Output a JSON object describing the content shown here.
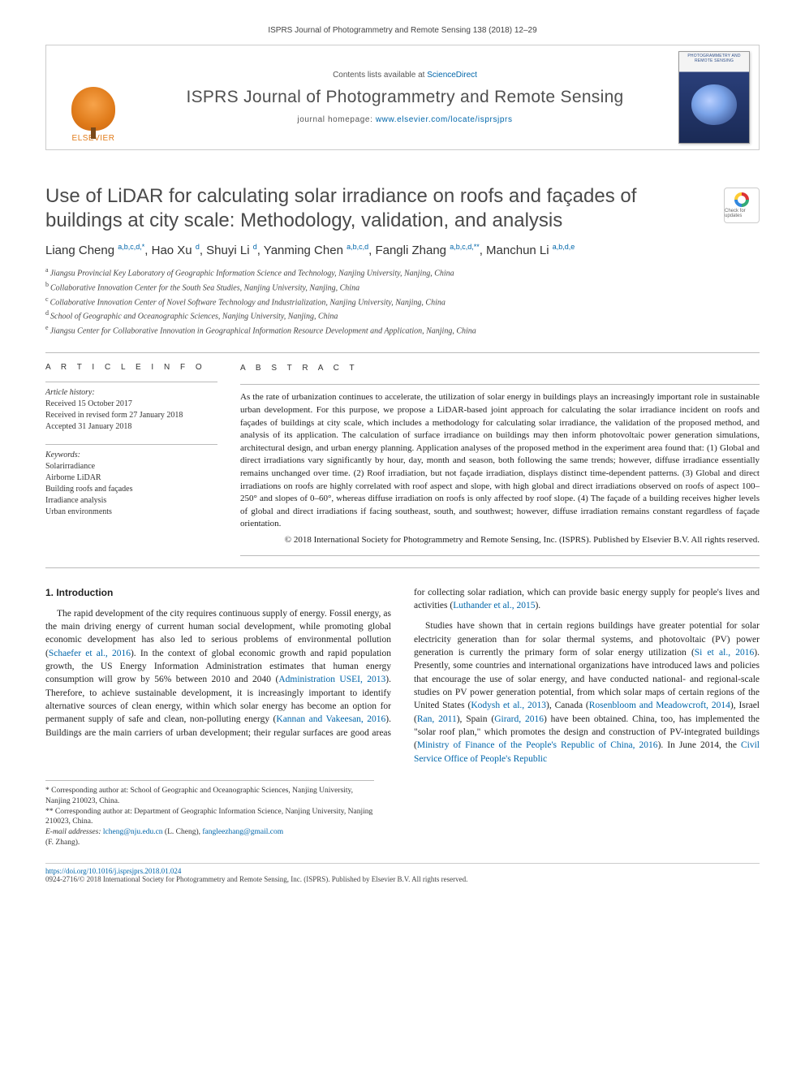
{
  "running_head": "ISPRS Journal of Photogrammetry and Remote Sensing 138 (2018) 12–29",
  "banner": {
    "publisher": "ELSEVIER",
    "contents_prefix": "Contents lists available at ",
    "contents_link": "ScienceDirect",
    "journal_name": "ISPRS Journal of Photogrammetry and Remote Sensing",
    "homepage_prefix": "journal homepage: ",
    "homepage_link": "www.elsevier.com/locate/isprsjprs",
    "cover_text": "PHOTOGRAMMETRY AND REMOTE SENSING"
  },
  "title": "Use of LiDAR for calculating solar irradiance on roofs and façades of buildings at city scale: Methodology, validation, and analysis",
  "check_badge": "Check for updates",
  "authors_html": "Liang Cheng <sup>a,b,c,d,*</sup>, Hao Xu <sup>d</sup>, Shuyi Li <sup>d</sup>, Yanming Chen <sup>a,b,c,d</sup>, Fangli Zhang <sup>a,b,c,d,**</sup>, Manchun Li <sup>a,b,d,e</sup>",
  "affiliations": [
    "a Jiangsu Provincial Key Laboratory of Geographic Information Science and Technology, Nanjing University, Nanjing, China",
    "b Collaborative Innovation Center for the South Sea Studies, Nanjing University, Nanjing, China",
    "c Collaborative Innovation Center of Novel Software Technology and Industrialization, Nanjing University, Nanjing, China",
    "d School of Geographic and Oceanographic Sciences, Nanjing University, Nanjing, China",
    "e Jiangsu Center for Collaborative Innovation in Geographical Information Resource Development and Application, Nanjing, China"
  ],
  "article_info": {
    "heading": "A R T I C L E   I N F O",
    "history_label": "Article history:",
    "history": [
      "Received 15 October 2017",
      "Received in revised form 27 January 2018",
      "Accepted 31 January 2018"
    ],
    "keywords_label": "Keywords:",
    "keywords": [
      "Solarirradiance",
      "Airborne LiDAR",
      "Building roofs and façades",
      "Irradiance analysis",
      "Urban environments"
    ]
  },
  "abstract": {
    "heading": "A B S T R A C T",
    "text": "As the rate of urbanization continues to accelerate, the utilization of solar energy in buildings plays an increasingly important role in sustainable urban development. For this purpose, we propose a LiDAR-based joint approach for calculating the solar irradiance incident on roofs and façades of buildings at city scale, which includes a methodology for calculating solar irradiance, the validation of the proposed method, and analysis of its application. The calculation of surface irradiance on buildings may then inform photovoltaic power generation simulations, architectural design, and urban energy planning. Application analyses of the proposed method in the experiment area found that: (1) Global and direct irradiations vary significantly by hour, day, month and season, both following the same trends; however, diffuse irradiance essentially remains unchanged over time. (2) Roof irradiation, but not façade irradiation, displays distinct time-dependent patterns. (3) Global and direct irradiations on roofs are highly correlated with roof aspect and slope, with high global and direct irradiations observed on roofs of aspect 100–250° and slopes of 0–60°, whereas diffuse irradiation on roofs is only affected by roof slope. (4) The façade of a building receives higher levels of global and direct irradiations if facing southeast, south, and southwest; however, diffuse irradiation remains constant regardless of façade orientation.",
    "copyright": "© 2018 International Society for Photogrammetry and Remote Sensing, Inc. (ISPRS). Published by Elsevier B.V. All rights reserved."
  },
  "section1": {
    "heading": "1. Introduction",
    "p1_pre": "The rapid development of the city requires continuous supply of energy. Fossil energy, as the main driving energy of current human social development, while promoting global economic development has also led to serious problems of environmental pollution (",
    "c1": "Schaefer et al., 2016",
    "p1_mid1": "). In the context of global economic growth and rapid population growth, the US Energy Information Administration estimates that human energy consumption will grow by 56% between 2010 and 2040 (",
    "c2": "Administration USEI, 2013",
    "p1_post": "). Therefore, to achieve sustainable development, it is increasingly important to identify alternative sources of clean energy, within which solar energy has become an option for permanent supply of safe",
    "p1b_pre": "and clean, non-polluting energy (",
    "c3": "Kannan and Vakeesan, 2016",
    "p1b_mid": "). Buildings are the main carriers of urban development; their regular surfaces are good areas for collecting solar radiation, which can provide basic energy supply for people's lives and activities (",
    "c4": "Luthander et al., 2015",
    "p1b_post": ").",
    "p2_pre": "Studies have shown that in certain regions buildings have greater potential for solar electricity generation than for solar thermal systems, and photovoltaic (PV) power generation is currently the primary form of solar energy utilization (",
    "c5": "Si et al., 2016",
    "p2_mid1": "). Presently, some countries and international organizations have introduced laws and policies that encourage the use of solar energy, and have conducted national- and regional-scale studies on PV power generation potential, from which solar maps of certain regions of the United States (",
    "c6": "Kodysh et al., 2013",
    "p2_mid2": "), Canada (",
    "c7": "Rosenbloom and Meadowcroft, 2014",
    "p2_mid3": "), Israel (",
    "c8": "Ran, 2011",
    "p2_mid4": "), Spain (",
    "c9": "Girard, 2016",
    "p2_mid5": ") have been obtained. China, too, has implemented the \"solar roof plan,\" which promotes the design and construction of PV-integrated buildings (",
    "c10": "Ministry of Finance of the People's Republic of China, 2016",
    "p2_mid6": "). In June 2014, the ",
    "c11": "Civil Service Office of People's Republic"
  },
  "footnotes": {
    "f1": "* Corresponding author at: School of Geographic and Oceanographic Sciences, Nanjing University, Nanjing 210023, China.",
    "f2": "** Corresponding author at: Department of Geographic Information Science, Nanjing University, Nanjing 210023, China.",
    "email_label": "E-mail addresses:",
    "e1": "lcheng@nju.edu.cn",
    "e1_who": " (L. Cheng), ",
    "e2": "fangleezhang@gmail.com",
    "e2_who": "(F. Zhang)."
  },
  "bottom": {
    "doi": "https://doi.org/10.1016/j.isprsjprs.2018.01.024",
    "line": "0924-2716/© 2018 International Society for Photogrammetry and Remote Sensing, Inc. (ISPRS). Published by Elsevier B.V. All rights reserved."
  }
}
